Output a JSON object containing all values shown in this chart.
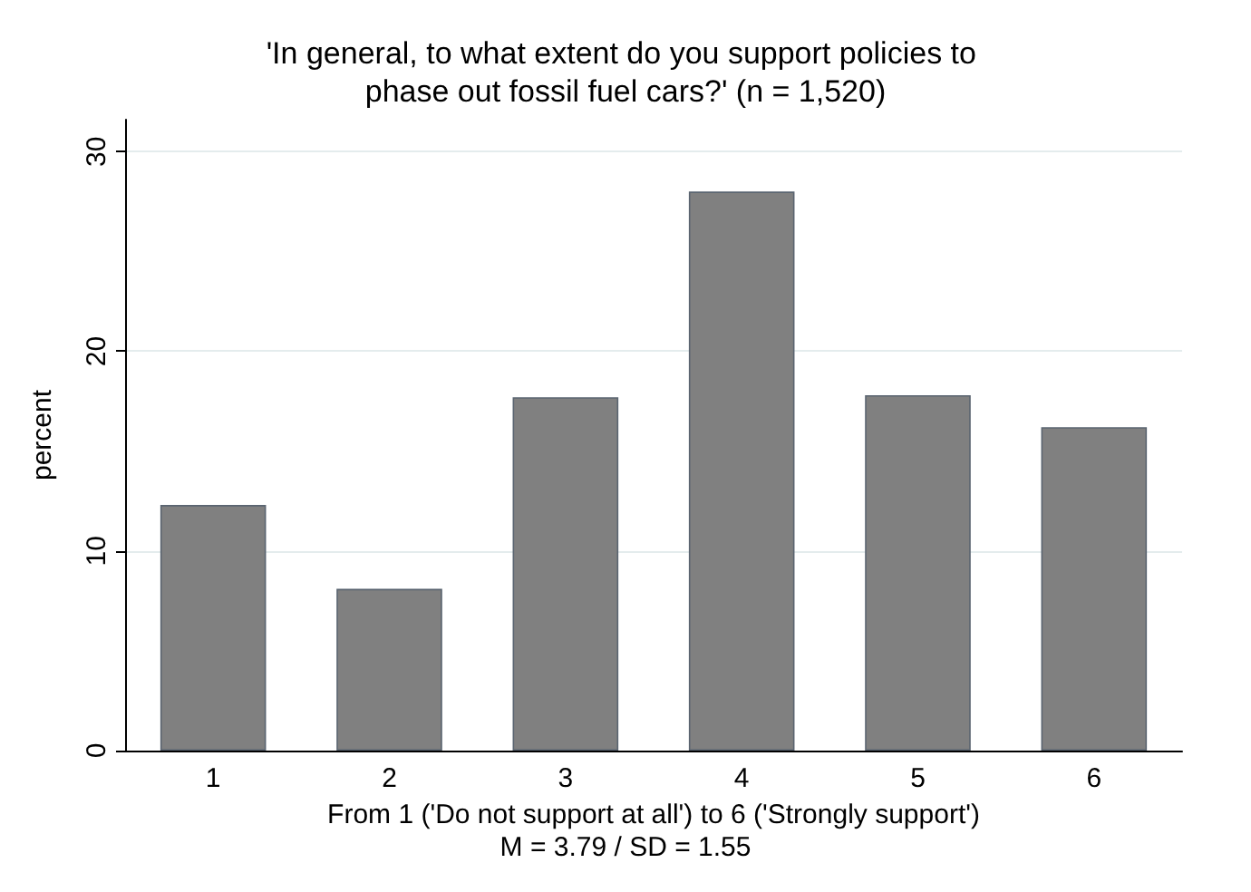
{
  "chart_data": {
    "type": "bar",
    "title": "'In general, to what extent do you support policies to phase out fossil fuel cars?' (n = 1,520)",
    "xlabel": "From 1 ('Do not support at all') to 6 ('Strongly support')",
    "ylabel": "percent",
    "annotations": [
      "M = 3.79 / SD = 1.55"
    ],
    "categories": [
      "1",
      "2",
      "3",
      "4",
      "5",
      "6"
    ],
    "values": [
      12.3,
      8.1,
      17.7,
      28.0,
      17.8,
      16.2
    ],
    "color": "#808080",
    "ylim": [
      0,
      31.6
    ],
    "yticks": [
      0,
      10,
      20,
      30
    ],
    "grid": "y"
  }
}
